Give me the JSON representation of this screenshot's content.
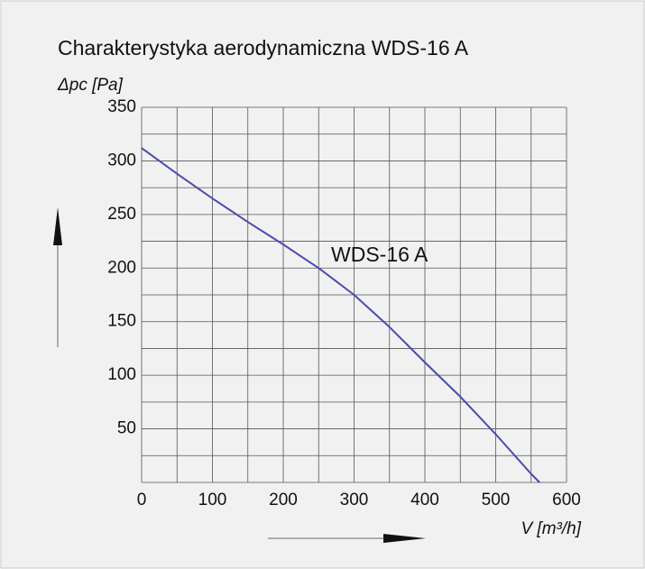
{
  "chart_data": {
    "type": "line",
    "title": "Charakterystyka aerodynamiczna  WDS-16 A",
    "y_label": "Δpc [Pa]",
    "x_label": "V [m³/h]",
    "annotation": "WDS-16 A",
    "x": [
      0,
      50,
      100,
      150,
      200,
      250,
      300,
      350,
      400,
      450,
      500,
      550,
      562
    ],
    "series": [
      {
        "name": "WDS-16 A",
        "color": "#4b4bb0",
        "values": [
          312,
          288,
          265,
          243,
          222,
          200,
          175,
          145,
          112,
          80,
          45,
          8,
          0
        ]
      }
    ],
    "xlim": [
      0,
      600
    ],
    "ylim": [
      0,
      350
    ],
    "xticks": [
      0,
      100,
      200,
      300,
      400,
      500,
      600
    ],
    "yticks": [
      50,
      100,
      150,
      200,
      250,
      300,
      350
    ],
    "xgrid": [
      0,
      50,
      100,
      150,
      200,
      250,
      300,
      350,
      400,
      450,
      500,
      550,
      600
    ],
    "ygrid": [
      0,
      25,
      50,
      75,
      100,
      125,
      150,
      175,
      200,
      225,
      250,
      275,
      300,
      325,
      350
    ],
    "grid": true
  }
}
